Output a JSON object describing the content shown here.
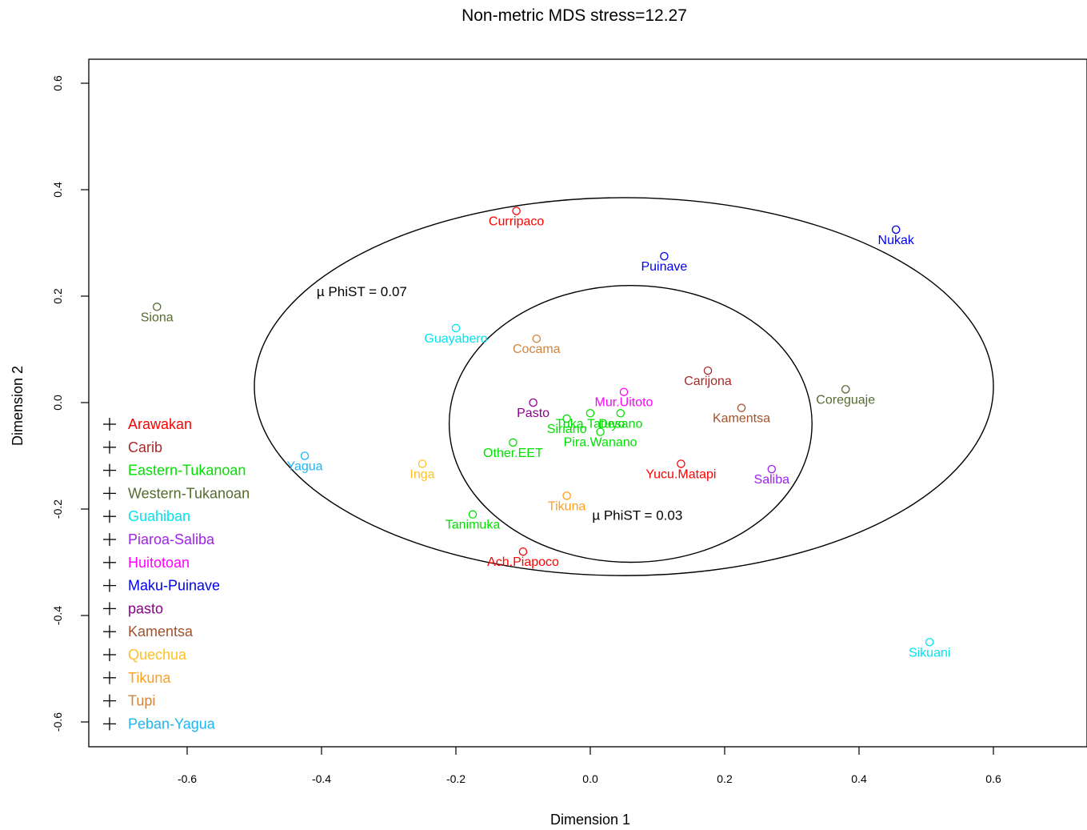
{
  "chart_data": {
    "type": "scatter",
    "title": "Non-metric MDS  stress=12.27",
    "xlabel": "Dimension 1",
    "ylabel": "Dimension 2",
    "xlim": [
      -0.75,
      0.74
    ],
    "ylim": [
      -0.65,
      0.65
    ],
    "xticks": [
      "-0.6",
      "-0.4",
      "-0.2",
      "0.0",
      "0.2",
      "0.4",
      "0.6"
    ],
    "yticks": [
      "0.6",
      "0.4",
      "0.2",
      "0.0",
      "-0.2",
      "-0.4",
      "-0.6"
    ],
    "grid": false,
    "legend_position": "bottom-left",
    "annotations": [
      {
        "text": "µ PhiST = 0.07",
        "x": -0.34,
        "y": 0.2
      },
      {
        "text": "µ PhiST = 0.03",
        "x": 0.07,
        "y": -0.22
      }
    ],
    "ellipses": [
      {
        "cx": 0.05,
        "cy": 0.03,
        "rx": 0.55,
        "ry": 0.355
      },
      {
        "cx": 0.06,
        "cy": -0.04,
        "rx": 0.27,
        "ry": 0.26
      }
    ],
    "groups": [
      {
        "name": "Arawakan",
        "color": "#ff0000"
      },
      {
        "name": "Carib",
        "color": "#a52a2a"
      },
      {
        "name": "Eastern-Tukanoan",
        "color": "#00e000"
      },
      {
        "name": "Western-Tukanoan",
        "color": "#556b2f"
      },
      {
        "name": "Guahiban",
        "color": "#00e5ee"
      },
      {
        "name": "Piaroa-Saliba",
        "color": "#a020f0"
      },
      {
        "name": "Huitotoan",
        "color": "#ff00ff"
      },
      {
        "name": "Maku-Puinave",
        "color": "#0000ee"
      },
      {
        "name": "pasto",
        "color": "#8b008b"
      },
      {
        "name": "Kamentsa",
        "color": "#a0522d"
      },
      {
        "name": "Quechua",
        "color": "#ffc125"
      },
      {
        "name": "Tikuna",
        "color": "#ff9f1a"
      },
      {
        "name": "Tupi",
        "color": "#cd853f"
      },
      {
        "name": "Peban-Yagua",
        "color": "#1eb4f0"
      }
    ],
    "points": [
      {
        "label": "Curripaco",
        "group": "Arawakan",
        "x": -0.11,
        "y": 0.36
      },
      {
        "label": "Puinave",
        "group": "Maku-Puinave",
        "x": 0.11,
        "y": 0.275
      },
      {
        "label": "Nukak",
        "group": "Maku-Puinave",
        "x": 0.455,
        "y": 0.325
      },
      {
        "label": "Siona",
        "group": "Western-Tukanoan",
        "x": -0.645,
        "y": 0.18
      },
      {
        "label": "Guayabero",
        "group": "Guahiban",
        "x": -0.2,
        "y": 0.14
      },
      {
        "label": "Cocama",
        "group": "Tupi",
        "x": -0.08,
        "y": 0.12
      },
      {
        "label": "Carijona",
        "group": "Carib",
        "x": 0.175,
        "y": 0.06
      },
      {
        "label": "Mur.Uitoto",
        "group": "Huitotoan",
        "x": 0.05,
        "y": 0.02
      },
      {
        "label": "Pasto",
        "group": "pasto",
        "x": -0.085,
        "y": 0.0
      },
      {
        "label": "Tuka.Tatuyo",
        "group": "Eastern-Tukanoan",
        "x": 0.0,
        "y": -0.02
      },
      {
        "label": "Coreguaje",
        "group": "Western-Tukanoan",
        "x": 0.38,
        "y": 0.025
      },
      {
        "label": "Kamentsa",
        "group": "Kamentsa",
        "x": 0.225,
        "y": -0.01
      },
      {
        "label": "Desano",
        "group": "Eastern-Tukanoan",
        "x": 0.045,
        "y": -0.02
      },
      {
        "label": "Siriano",
        "group": "Eastern-Tukanoan",
        "x": -0.035,
        "y": -0.03
      },
      {
        "label": "Pira.Wanano",
        "group": "Eastern-Tukanoan",
        "x": 0.015,
        "y": -0.055
      },
      {
        "label": "Other.EET",
        "group": "Eastern-Tukanoan",
        "x": -0.115,
        "y": -0.075
      },
      {
        "label": "Yagua",
        "group": "Peban-Yagua",
        "x": -0.425,
        "y": -0.1
      },
      {
        "label": "Inga",
        "group": "Quechua",
        "x": -0.25,
        "y": -0.115
      },
      {
        "label": "Yucu.Matapi",
        "group": "Arawakan",
        "x": 0.135,
        "y": -0.115
      },
      {
        "label": "Saliba",
        "group": "Piaroa-Saliba",
        "x": 0.27,
        "y": -0.125
      },
      {
        "label": "Tikuna",
        "group": "Tikuna",
        "x": -0.035,
        "y": -0.175
      },
      {
        "label": "Tanimuka",
        "group": "Eastern-Tukanoan",
        "x": -0.175,
        "y": -0.21
      },
      {
        "label": "Ach.Piapoco",
        "group": "Arawakan",
        "x": -0.1,
        "y": -0.28
      },
      {
        "label": "Sikuani",
        "group": "Guahiban",
        "x": 0.505,
        "y": -0.45
      }
    ]
  }
}
